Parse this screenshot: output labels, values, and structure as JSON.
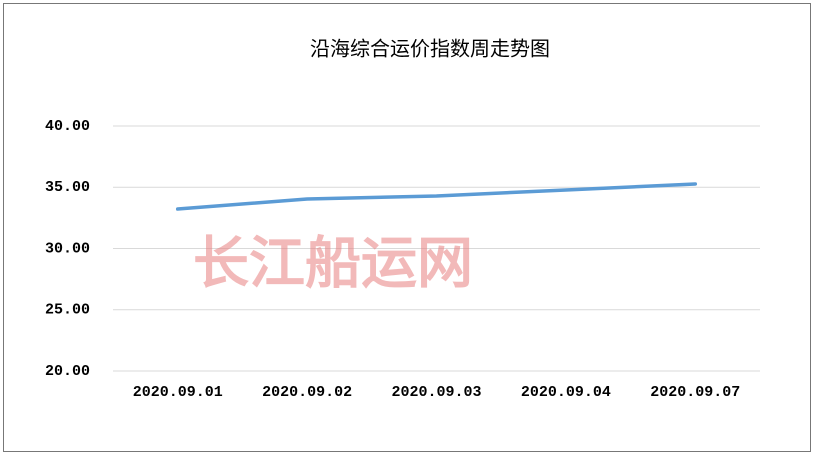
{
  "chart_data": {
    "type": "line",
    "title": "沿海综合运价指数周走势图",
    "watermark": "长江船运网",
    "categories": [
      "2020.09.01",
      "2020.09.02",
      "2020.09.03",
      "2020.09.04",
      "2020.09.07"
    ],
    "series": [
      {
        "color": "#5b9bd5",
        "values": [
          33.22,
          34.04,
          34.29,
          34.78,
          35.27
        ]
      }
    ],
    "ylim": [
      20,
      40
    ],
    "yticks": [
      {
        "value": 20,
        "label": "20.00"
      },
      {
        "value": 25,
        "label": "25.00"
      },
      {
        "value": 30,
        "label": "30.00"
      },
      {
        "value": 35,
        "label": "35.00"
      },
      {
        "value": 40,
        "label": "40.00"
      }
    ],
    "grid": true
  }
}
